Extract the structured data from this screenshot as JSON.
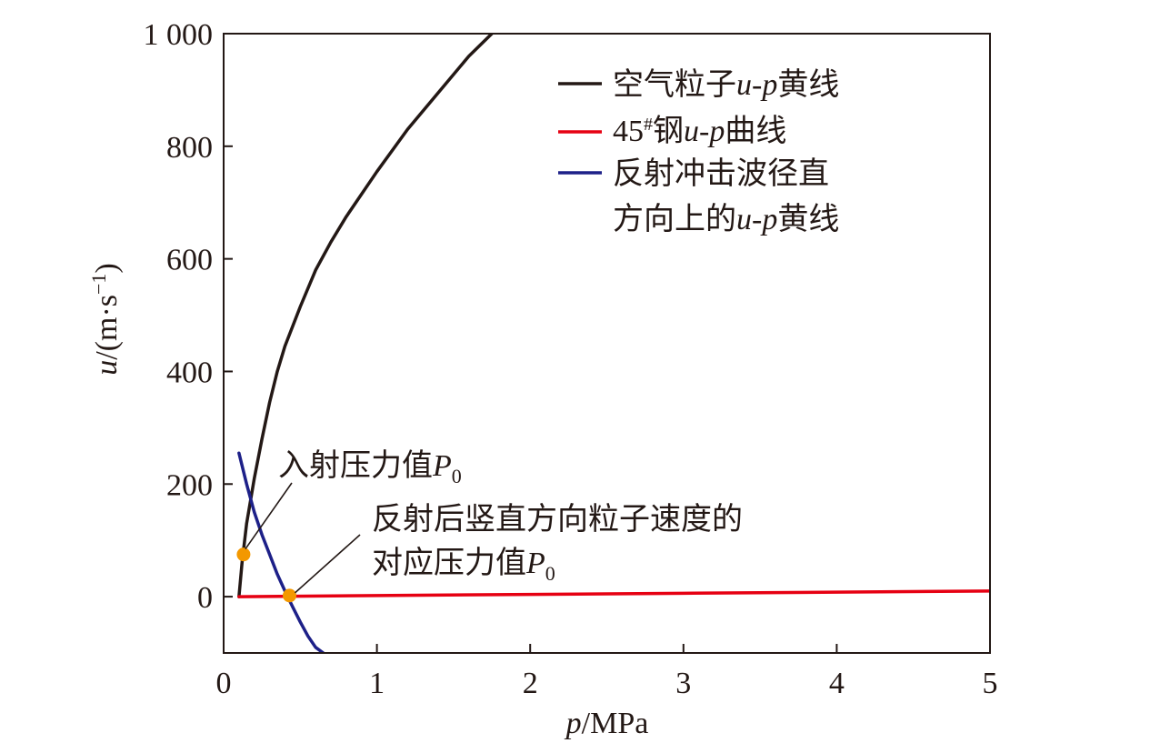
{
  "chart_data": {
    "type": "line",
    "xlabel": {
      "var": "p",
      "unit": "/MPa"
    },
    "ylabel": {
      "var": "u",
      "unit": "/(m·s",
      "exp": "−1",
      "close": ")"
    },
    "xlim": [
      0,
      5
    ],
    "ylim": [
      -100,
      1000
    ],
    "xticks": [
      0,
      1,
      2,
      3,
      4,
      5
    ],
    "xtick_labels": [
      "0",
      "1",
      "2",
      "3",
      "4",
      "5"
    ],
    "yticks": [
      0,
      200,
      400,
      600,
      800,
      1000
    ],
    "ytick_labels": [
      "0",
      "200",
      "400",
      "600",
      "800",
      "1 000"
    ],
    "series": [
      {
        "name": "空气粒子u-p黄线",
        "name_parts": [
          "空气粒子",
          "u-p",
          "黄线"
        ],
        "color": "#231815",
        "x": [
          0.1,
          0.12,
          0.15,
          0.2,
          0.25,
          0.3,
          0.35,
          0.4,
          0.5,
          0.6,
          0.7,
          0.8,
          1.0,
          1.2,
          1.4,
          1.6,
          1.75
        ],
        "y": [
          0,
          60,
          130,
          210,
          280,
          345,
          400,
          445,
          515,
          580,
          630,
          675,
          755,
          830,
          895,
          960,
          1000
        ]
      },
      {
        "name": "45#钢u-p曲线",
        "name_parts": [
          "45",
          "#",
          "钢",
          "u-p",
          "曲线"
        ],
        "color": "#e60012",
        "x": [
          0.1,
          1,
          2,
          3,
          4,
          5
        ],
        "y": [
          0,
          2,
          4,
          6,
          8,
          10
        ]
      },
      {
        "name": "反射冲击波径直方向上的u-p黄线",
        "name_parts": [
          "反射冲击波径直",
          "方向上的",
          "u-p",
          "黄线"
        ],
        "color": "#1d2088",
        "x": [
          0.1,
          0.15,
          0.2,
          0.25,
          0.3,
          0.35,
          0.4,
          0.45,
          0.5,
          0.55,
          0.6,
          0.65
        ],
        "y": [
          255,
          200,
          150,
          110,
          75,
          40,
          10,
          -18,
          -45,
          -70,
          -90,
          -100
        ]
      }
    ],
    "markers": [
      {
        "x": 0.13,
        "y": 75,
        "color": "#f39800"
      },
      {
        "x": 0.43,
        "y": 2,
        "color": "#f39800"
      }
    ],
    "annotations": [
      {
        "lines": [
          [
            "入射压力值",
            "P",
            "0"
          ]
        ],
        "points_to": [
          0.13,
          75
        ]
      },
      {
        "lines": [
          [
            "反射后竖直方向粒子速度的"
          ],
          [
            "对应压力值",
            "P",
            "0"
          ]
        ],
        "points_to": [
          0.43,
          2
        ]
      }
    ],
    "legend_position": "top-right"
  }
}
